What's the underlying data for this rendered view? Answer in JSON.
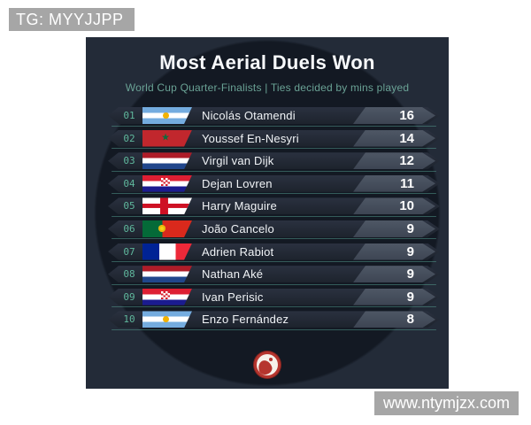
{
  "page": {
    "watermark_top": "TG: MYYJJPP",
    "watermark_bottom": "www.ntymjzx.com"
  },
  "header": {
    "title": "Most Aerial Duels Won",
    "subtitle": "World Cup Quarter-Finalists | Ties decided by mins played"
  },
  "colors": {
    "accent_teal": "#5fb79c",
    "subtitle_teal": "#6aa295",
    "card_bg": "#232b38",
    "card_inner_circle": "#131923",
    "row_bg": "#232a35",
    "value_badge_bg": "#49525f",
    "logo_red": "#b6352e",
    "watermark_bg": "#a6a6a6"
  },
  "icons": {
    "publisher_logo": "red-yin-yang-swirl-badge"
  },
  "chart_data": {
    "type": "table",
    "title": "Most Aerial Duels Won",
    "subtitle": "World Cup Quarter-Finalists | Ties decided by mins played",
    "columns": [
      "rank",
      "country_flag",
      "player",
      "aerial_duels_won"
    ],
    "rows": [
      {
        "rank": "01",
        "country": "Argentina",
        "player": "Nicolás Otamendi",
        "value": 16
      },
      {
        "rank": "02",
        "country": "Morocco",
        "player": "Youssef En-Nesyri",
        "value": 14
      },
      {
        "rank": "03",
        "country": "Netherlands",
        "player": "Virgil van Dijk",
        "value": 12
      },
      {
        "rank": "04",
        "country": "Croatia",
        "player": "Dejan Lovren",
        "value": 11
      },
      {
        "rank": "05",
        "country": "England",
        "player": "Harry Maguire",
        "value": 10
      },
      {
        "rank": "06",
        "country": "Portugal",
        "player": "João Cancelo",
        "value": 9
      },
      {
        "rank": "07",
        "country": "France",
        "player": "Adrien Rabiot",
        "value": 9
      },
      {
        "rank": "08",
        "country": "Netherlands",
        "player": "Nathan Aké",
        "value": 9
      },
      {
        "rank": "09",
        "country": "Croatia",
        "player": "Ivan Perisic",
        "value": 9
      },
      {
        "rank": "10",
        "country": "Argentina",
        "player": "Enzo Fernández",
        "value": 8
      }
    ]
  }
}
